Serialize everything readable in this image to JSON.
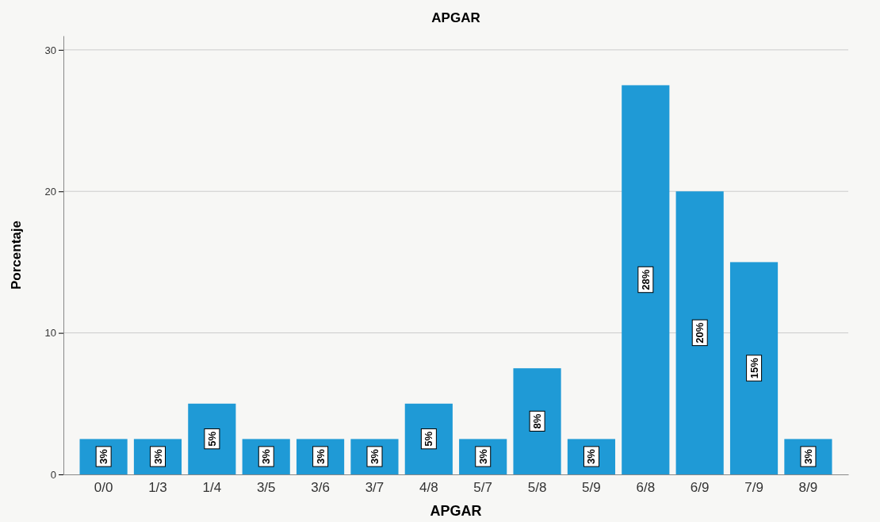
{
  "chart_data": {
    "type": "bar",
    "title": "APGAR",
    "xlabel": "APGAR",
    "ylabel": "Porcentaje",
    "categories": [
      "0/0",
      "1/3",
      "1/4",
      "3/5",
      "3/6",
      "3/7",
      "4/8",
      "5/7",
      "5/8",
      "5/9",
      "6/8",
      "6/9",
      "7/9",
      "8/9"
    ],
    "values": [
      2.5,
      2.5,
      5,
      2.5,
      2.5,
      2.5,
      5,
      2.5,
      7.5,
      2.5,
      27.5,
      20,
      15,
      2.5
    ],
    "value_labels": [
      "3%",
      "3%",
      "5%",
      "3%",
      "3%",
      "3%",
      "5%",
      "3%",
      "8%",
      "3%",
      "28%",
      "20%",
      "15%",
      "3%"
    ],
    "color": "#1f9ad6",
    "ylim": [
      0,
      31
    ],
    "yticks": [
      0,
      10,
      20,
      30
    ],
    "grid": "y"
  }
}
